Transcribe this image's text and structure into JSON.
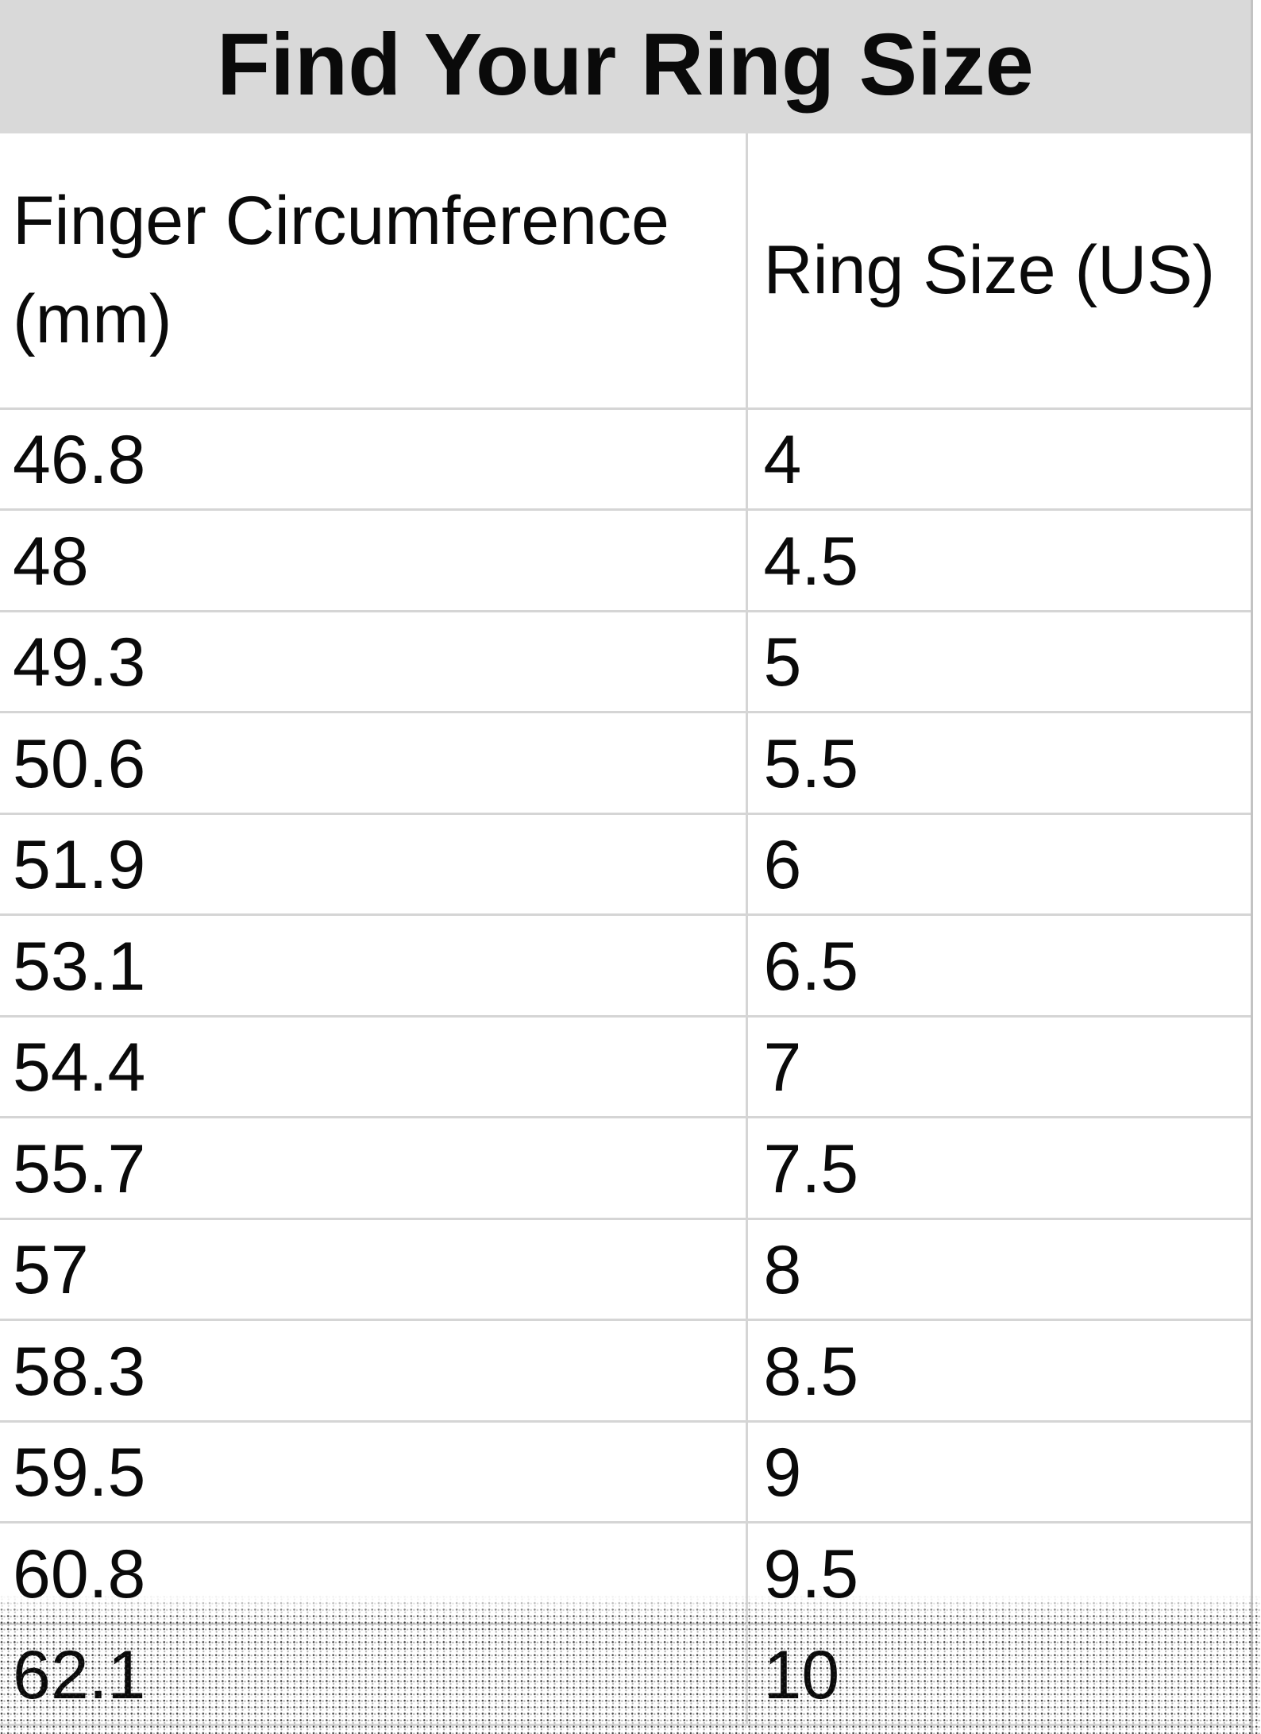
{
  "title": "Find Your Ring Size",
  "columns": [
    "Finger Circumference (mm)",
    "Ring Size (US)"
  ],
  "rows": [
    {
      "mm": "46.8",
      "us": "4"
    },
    {
      "mm": "48",
      "us": "4.5"
    },
    {
      "mm": "49.3",
      "us": "5"
    },
    {
      "mm": "50.6",
      "us": "5.5"
    },
    {
      "mm": "51.9",
      "us": "6"
    },
    {
      "mm": "53.1",
      "us": "6.5"
    },
    {
      "mm": "54.4",
      "us": "7"
    },
    {
      "mm": "55.7",
      "us": "7.5"
    },
    {
      "mm": "57",
      "us": "8"
    },
    {
      "mm": "58.3",
      "us": "8.5"
    },
    {
      "mm": "59.5",
      "us": "9"
    },
    {
      "mm": "60.8",
      "us": "9.5"
    },
    {
      "mm": "62.1",
      "us": "10"
    }
  ],
  "colors": {
    "title_bar_bg": "#d9d9d9",
    "grid_line": "#d5d5d5",
    "table_right_border": "#c3c3c3",
    "text": "#0a0a0a",
    "background": "#ffffff"
  },
  "chart_data": {
    "type": "table",
    "title": "Find Your Ring Size",
    "columns": [
      "Finger Circumference (mm)",
      "Ring Size (US)"
    ],
    "rows": [
      [
        46.8,
        4
      ],
      [
        48,
        4.5
      ],
      [
        49.3,
        5
      ],
      [
        50.6,
        5.5
      ],
      [
        51.9,
        6
      ],
      [
        53.1,
        6.5
      ],
      [
        54.4,
        7
      ],
      [
        55.7,
        7.5
      ],
      [
        57,
        8
      ],
      [
        58.3,
        8.5
      ],
      [
        59.5,
        9
      ],
      [
        60.8,
        9.5
      ],
      [
        62.1,
        10
      ]
    ]
  }
}
